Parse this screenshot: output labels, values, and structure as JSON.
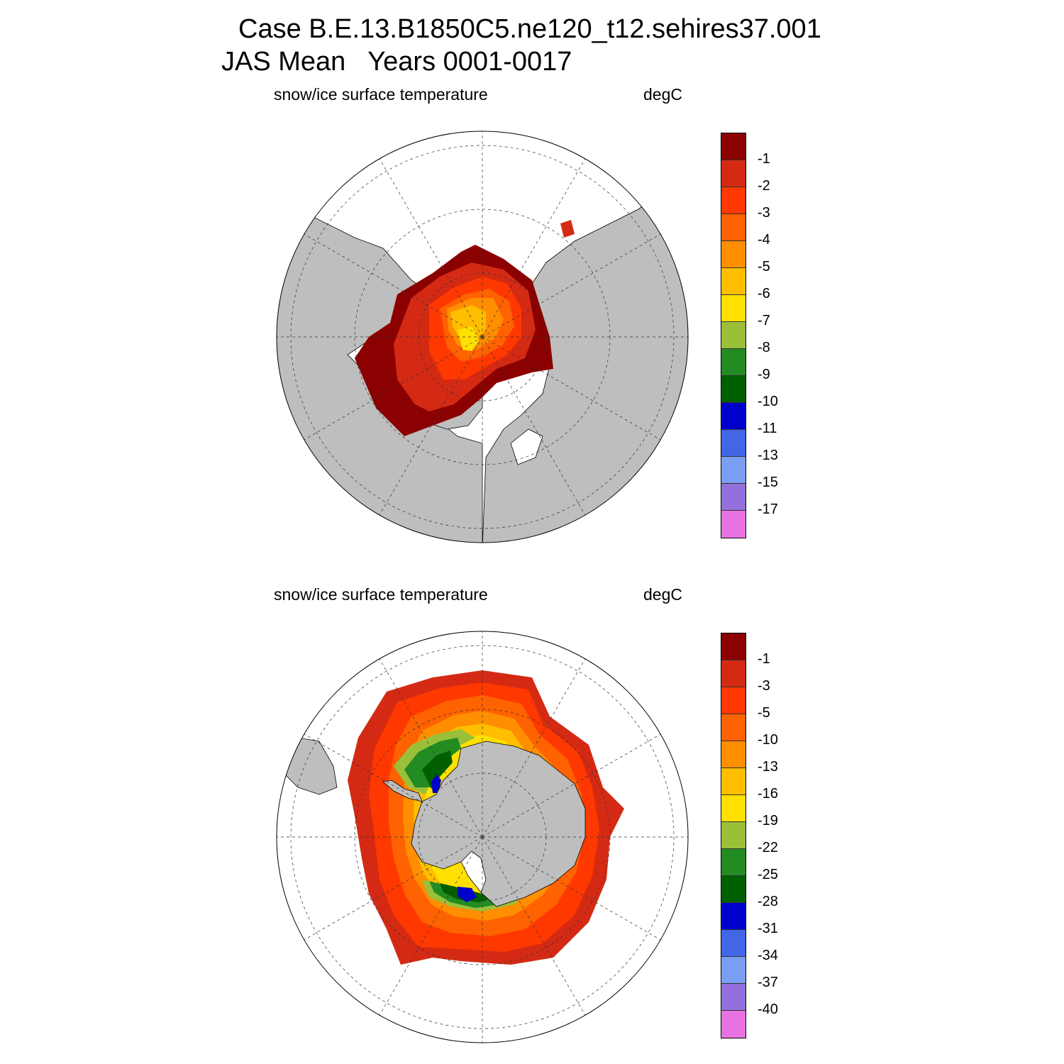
{
  "title_line1": "Case B.E.13.B1850C5.ne120_t12.sehires37.001",
  "title_line2": "JAS Mean   Years 0001-0017",
  "panels": [
    {
      "variable_label": "snow/ice surface temperature",
      "units_label": "degC",
      "hemisphere": "north",
      "colorbar": {
        "labels": [
          "-1",
          "-2",
          "-3",
          "-4",
          "-5",
          "-6",
          "-7",
          "-8",
          "-9",
          "-10",
          "-11",
          "-13",
          "-15",
          "-17"
        ],
        "colors": [
          "#8b0000",
          "#d42a14",
          "#ff3800",
          "#ff6200",
          "#ff8e00",
          "#ffbe00",
          "#ffe000",
          "#9ac03a",
          "#228b22",
          "#006000",
          "#0000cd",
          "#4166e6",
          "#7a9ef2",
          "#9370db",
          "#e873e0"
        ]
      }
    },
    {
      "variable_label": "snow/ice surface temperature",
      "units_label": "degC",
      "hemisphere": "south",
      "colorbar": {
        "labels": [
          "-1",
          "-3",
          "-5",
          "-10",
          "-13",
          "-16",
          "-19",
          "-22",
          "-25",
          "-28",
          "-31",
          "-34",
          "-37",
          "-40"
        ],
        "colors": [
          "#8b0000",
          "#d42a14",
          "#ff3800",
          "#ff6200",
          "#ff8e00",
          "#ffbe00",
          "#ffe000",
          "#9ac03a",
          "#228b22",
          "#006000",
          "#0000cd",
          "#4166e6",
          "#7a9ef2",
          "#9370db",
          "#e873e0"
        ]
      }
    }
  ]
}
